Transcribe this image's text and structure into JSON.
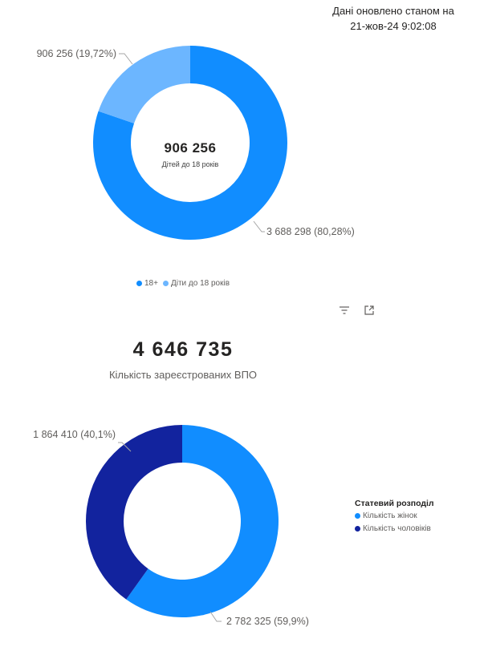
{
  "updated": {
    "line1": "Дані оновлено станом на",
    "line2": "21-жов-24 9:02:08"
  },
  "toolbar": {
    "filter_icon": "filter-icon",
    "focus_icon": "focus-mode-icon"
  },
  "kpi": {
    "value": "4 646 735",
    "label": "Кількість зареєстрованих ВПО"
  },
  "chart_data": [
    {
      "type": "pie",
      "donut": true,
      "center_value": "906 256",
      "center_label": "Дітей до 18 років",
      "slices": [
        {
          "name": "18+",
          "value": 3688298,
          "label": "3 688 298 (80,28%)",
          "color": "#118dff"
        },
        {
          "name": "Діти до 18 років",
          "value": 906256,
          "label": "906 256 (19,72%)",
          "color": "#6cb6ff"
        }
      ],
      "legend": [
        "18+",
        "Діти до 18 років"
      ],
      "legend_position": "bottom"
    },
    {
      "type": "pie",
      "donut": true,
      "legend_title": "Статевий розподіл",
      "slices": [
        {
          "name": "Кількість жінок",
          "value": 2782325,
          "label": "2 782 325 (59,9%)",
          "color": "#118dff"
        },
        {
          "name": "Кількість чоловіків",
          "value": 1864410,
          "label": "1 864 410 (40,1%)",
          "color": "#12239e"
        }
      ],
      "legend": [
        "Кількість жінок",
        "Кількість чоловіків"
      ],
      "legend_position": "right"
    }
  ]
}
